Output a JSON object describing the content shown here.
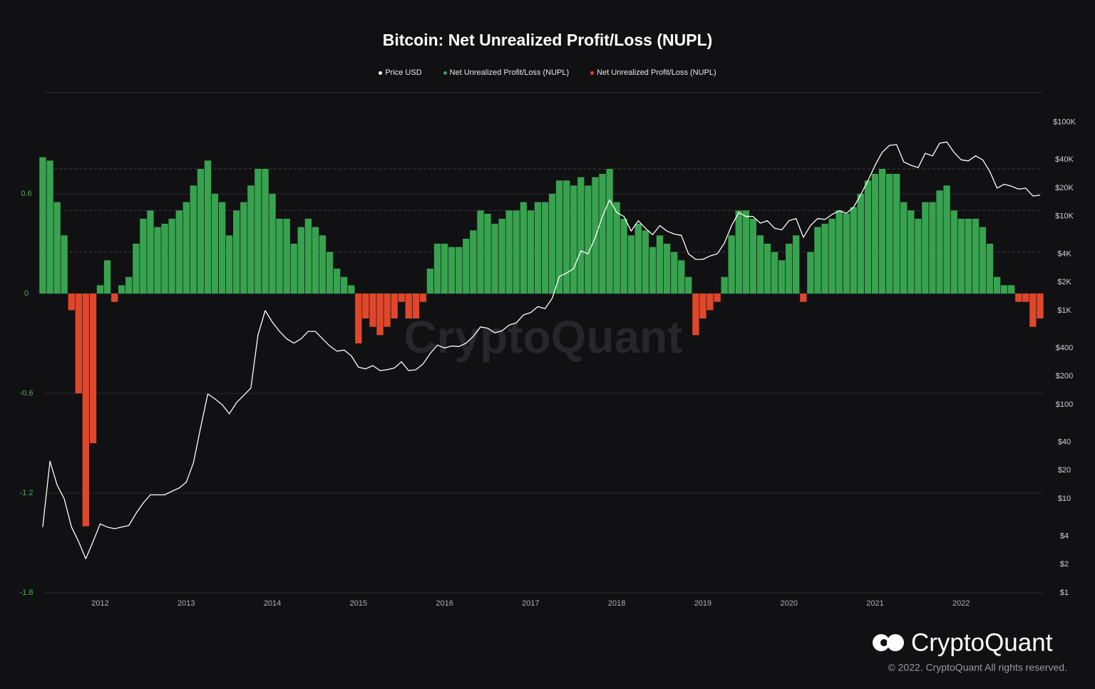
{
  "chart_data": {
    "type": "combo",
    "title": "Bitcoin: Net Unrealized Profit/Loss (NUPL)",
    "watermark": "CryptoQuant",
    "brand": "CryptoQuant",
    "copyright": "© 2022. CryptoQuant All rights reserved.",
    "x": [
      2011.333,
      2011.417,
      2011.5,
      2011.583,
      2011.667,
      2011.75,
      2011.833,
      2011.917,
      2012,
      2012.083,
      2012.167,
      2012.25,
      2012.333,
      2012.417,
      2012.5,
      2012.583,
      2012.667,
      2012.75,
      2012.833,
      2012.917,
      2013,
      2013.083,
      2013.167,
      2013.25,
      2013.333,
      2013.417,
      2013.5,
      2013.583,
      2013.667,
      2013.75,
      2013.833,
      2013.917,
      2014,
      2014.083,
      2014.167,
      2014.25,
      2014.333,
      2014.417,
      2014.5,
      2014.583,
      2014.667,
      2014.75,
      2014.833,
      2014.917,
      2015,
      2015.083,
      2015.167,
      2015.25,
      2015.333,
      2015.417,
      2015.5,
      2015.583,
      2015.667,
      2015.75,
      2015.833,
      2015.917,
      2016,
      2016.083,
      2016.167,
      2016.25,
      2016.333,
      2016.417,
      2016.5,
      2016.583,
      2016.667,
      2016.75,
      2016.833,
      2016.917,
      2017,
      2017.083,
      2017.167,
      2017.25,
      2017.333,
      2017.417,
      2017.5,
      2017.583,
      2017.667,
      2017.75,
      2017.833,
      2017.917,
      2018,
      2018.083,
      2018.167,
      2018.25,
      2018.333,
      2018.417,
      2018.5,
      2018.583,
      2018.667,
      2018.75,
      2018.833,
      2018.917,
      2019,
      2019.083,
      2019.167,
      2019.25,
      2019.333,
      2019.417,
      2019.5,
      2019.583,
      2019.667,
      2019.75,
      2019.833,
      2019.917,
      2020,
      2020.083,
      2020.167,
      2020.25,
      2020.333,
      2020.417,
      2020.5,
      2020.583,
      2020.667,
      2020.75,
      2020.833,
      2020.917,
      2021,
      2021.083,
      2021.167,
      2021.25,
      2021.333,
      2021.417,
      2021.5,
      2021.583,
      2021.667,
      2021.75,
      2021.833,
      2021.917,
      2022,
      2022.083,
      2022.167,
      2022.25,
      2022.333,
      2022.417,
      2022.5,
      2022.583,
      2022.667,
      2022.75,
      2022.833,
      2022.917
    ],
    "xlim": [
      2011.35,
      2022.95
    ],
    "xticks": [
      2012,
      2013,
      2014,
      2015,
      2016,
      2017,
      2018,
      2019,
      2020,
      2021,
      2022
    ],
    "ylim": [
      -1.8,
      1.2
    ],
    "yticks": [
      -1.8,
      -1.2,
      -0.6,
      0,
      0.6
    ],
    "reference_lines": [
      0.25,
      0.5,
      0.75
    ],
    "y2lim": [
      1,
      200000
    ],
    "y2_scale": "log",
    "y2ticks": [
      {
        "value": 1,
        "label": "$1"
      },
      {
        "value": 2,
        "label": "$2"
      },
      {
        "value": 4,
        "label": "$4"
      },
      {
        "value": 10,
        "label": "$10"
      },
      {
        "value": 20,
        "label": "$20"
      },
      {
        "value": 40,
        "label": "$40"
      },
      {
        "value": 100,
        "label": "$100"
      },
      {
        "value": 200,
        "label": "$200"
      },
      {
        "value": 400,
        "label": "$400"
      },
      {
        "value": 1000,
        "label": "$1K"
      },
      {
        "value": 2000,
        "label": "$2K"
      },
      {
        "value": 4000,
        "label": "$4K"
      },
      {
        "value": 10000,
        "label": "$10K"
      },
      {
        "value": 20000,
        "label": "$20K"
      },
      {
        "value": 40000,
        "label": "$40K"
      },
      {
        "value": 100000,
        "label": "$100K"
      }
    ],
    "series": [
      {
        "name": "Price USD",
        "color": "#ffffff",
        "kind": "line",
        "axis": "y2",
        "values": [
          5,
          25,
          14,
          10,
          5,
          3.5,
          2.3,
          3.5,
          5.4,
          5,
          4.8,
          5,
          5.2,
          7,
          9,
          11,
          11,
          11,
          12,
          13,
          15,
          24,
          57,
          130,
          115,
          100,
          80,
          105,
          125,
          150,
          550,
          1000,
          750,
          600,
          500,
          450,
          500,
          600,
          600,
          500,
          420,
          370,
          380,
          330,
          250,
          240,
          260,
          230,
          235,
          245,
          285,
          230,
          235,
          270,
          350,
          430,
          400,
          420,
          415,
          450,
          530,
          670,
          650,
          580,
          610,
          700,
          740,
          900,
          950,
          1100,
          1050,
          1350,
          2300,
          2500,
          2800,
          4300,
          4000,
          6000,
          10000,
          15000,
          11000,
          10000,
          7000,
          9000,
          7500,
          6400,
          8000,
          7000,
          6500,
          6300,
          4000,
          3500,
          3500,
          3800,
          4000,
          5200,
          8000,
          11000,
          10000,
          10000,
          8500,
          9000,
          7500,
          7200,
          9000,
          9500,
          6000,
          8000,
          9500,
          9300,
          10500,
          11500,
          10800,
          12500,
          17000,
          24000,
          35000,
          48000,
          57000,
          58000,
          38000,
          35000,
          33000,
          47000,
          44000,
          60000,
          62000,
          48000,
          40000,
          39000,
          44000,
          40000,
          30000,
          20000,
          22000,
          21000,
          19500,
          20000,
          16500,
          16800
        ]
      },
      {
        "name": "Net Unrealized Profit/Loss (NUPL)",
        "color": "#38a34f",
        "kind": "bar",
        "axis": "y",
        "values": [
          0.82,
          0.8,
          0.55,
          0.35,
          null,
          null,
          null,
          null,
          0.05,
          0.2,
          null,
          0.05,
          0.1,
          0.3,
          0.45,
          0.5,
          0.4,
          0.42,
          0.45,
          0.5,
          0.55,
          0.65,
          0.75,
          0.8,
          0.6,
          0.55,
          0.35,
          0.5,
          0.55,
          0.65,
          0.75,
          0.75,
          0.6,
          0.45,
          0.45,
          0.3,
          0.4,
          0.45,
          0.4,
          0.35,
          0.25,
          0.15,
          0.1,
          0.05,
          null,
          null,
          null,
          null,
          null,
          null,
          null,
          null,
          null,
          null,
          0.15,
          0.3,
          0.3,
          0.28,
          0.28,
          0.33,
          0.38,
          0.5,
          0.48,
          0.42,
          0.45,
          0.5,
          0.5,
          0.55,
          0.5,
          0.55,
          0.55,
          0.6,
          0.68,
          0.68,
          0.65,
          0.7,
          0.65,
          0.7,
          0.72,
          0.75,
          0.55,
          0.45,
          0.35,
          0.42,
          0.38,
          0.28,
          0.35,
          0.3,
          0.25,
          0.2,
          0.1,
          null,
          null,
          null,
          null,
          0.1,
          0.35,
          0.5,
          0.5,
          0.45,
          0.35,
          0.3,
          0.25,
          0.2,
          0.3,
          0.35,
          null,
          0.25,
          0.4,
          0.42,
          0.45,
          0.5,
          0.48,
          0.52,
          0.6,
          0.68,
          0.72,
          0.75,
          0.72,
          0.72,
          0.55,
          0.5,
          0.45,
          0.55,
          0.55,
          0.62,
          0.65,
          0.5,
          0.45,
          0.45,
          0.45,
          0.4,
          0.3,
          0.1,
          0.05,
          0.05,
          null,
          null,
          null,
          null
        ]
      },
      {
        "name": "Net Unrealized Profit/Loss (NUPL)",
        "color": "#e0472a",
        "kind": "bar",
        "axis": "y",
        "values": [
          null,
          null,
          null,
          null,
          -0.1,
          -0.6,
          -1.4,
          -0.9,
          null,
          null,
          -0.05,
          null,
          null,
          null,
          null,
          null,
          null,
          null,
          null,
          null,
          null,
          null,
          null,
          null,
          null,
          null,
          null,
          null,
          null,
          null,
          null,
          null,
          null,
          null,
          null,
          null,
          null,
          null,
          null,
          null,
          null,
          null,
          null,
          null,
          -0.3,
          -0.15,
          -0.2,
          -0.25,
          -0.2,
          -0.15,
          -0.05,
          -0.15,
          -0.15,
          -0.05,
          null,
          null,
          null,
          null,
          null,
          null,
          null,
          null,
          null,
          null,
          null,
          null,
          null,
          null,
          null,
          null,
          null,
          null,
          null,
          null,
          null,
          null,
          null,
          null,
          null,
          null,
          null,
          null,
          null,
          null,
          null,
          null,
          null,
          null,
          null,
          null,
          null,
          -0.25,
          -0.15,
          -0.1,
          -0.05,
          null,
          null,
          null,
          null,
          null,
          null,
          null,
          null,
          null,
          null,
          null,
          -0.05,
          null,
          null,
          null,
          null,
          null,
          null,
          null,
          null,
          null,
          null,
          null,
          null,
          null,
          null,
          null,
          null,
          null,
          null,
          null,
          null,
          null,
          null,
          null,
          null,
          null,
          null,
          null,
          null,
          null,
          -0.05,
          -0.05,
          -0.2,
          -0.15
        ]
      }
    ]
  }
}
